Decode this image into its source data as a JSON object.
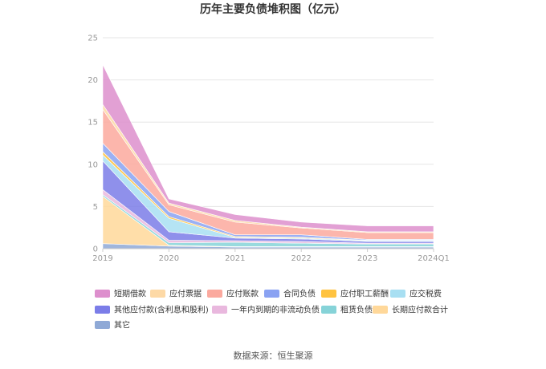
{
  "chart_data": {
    "type": "area",
    "stacked": true,
    "title": "历年主要负债堆积图（亿元）",
    "x": [
      "2019",
      "2020",
      "2021",
      "2022",
      "2023",
      "2024Q1"
    ],
    "ylim": [
      0,
      25
    ],
    "yticks": [
      0,
      5,
      10,
      15,
      20,
      25
    ],
    "grid": true,
    "legend_position": "bottom",
    "series": [
      {
        "name": "其它",
        "color": "#8fa9d6",
        "values": [
          0.6,
          0.3,
          0.2,
          0.2,
          0.2,
          0.2
        ]
      },
      {
        "name": "长期应付款合计",
        "color": "#ffd89a",
        "values": [
          5.6,
          0.1,
          0.05,
          0.05,
          0.05,
          0.05
        ]
      },
      {
        "name": "租赁负债",
        "color": "#86d3d8",
        "values": [
          0.2,
          0.3,
          0.5,
          0.4,
          0.3,
          0.3
        ]
      },
      {
        "name": "一年内到期的非流动负债",
        "color": "#e9b8de",
        "values": [
          0.6,
          0.3,
          0.2,
          0.2,
          0.1,
          0.1
        ]
      },
      {
        "name": "其他应付款(含利息和股利)",
        "color": "#7b7de8",
        "values": [
          3.4,
          1.0,
          0.3,
          0.3,
          0.2,
          0.2
        ]
      },
      {
        "name": "应交税费",
        "color": "#a8dff2",
        "values": [
          0.7,
          1.6,
          0.1,
          0.1,
          0.1,
          0.1
        ]
      },
      {
        "name": "应付职工薪酬",
        "color": "#ffc340",
        "values": [
          0.4,
          0.2,
          0.1,
          0.1,
          0.05,
          0.05
        ]
      },
      {
        "name": "合同负债",
        "color": "#8aa2f2",
        "values": [
          1.0,
          0.6,
          0.2,
          0.3,
          0.1,
          0.1
        ]
      },
      {
        "name": "应付账款",
        "color": "#fba99e",
        "values": [
          4.0,
          0.8,
          1.5,
          0.8,
          0.8,
          0.8
        ]
      },
      {
        "name": "应付票据",
        "color": "#fdd9a6",
        "values": [
          0.6,
          0.2,
          0.2,
          0.1,
          0.1,
          0.1
        ]
      },
      {
        "name": "短期借款",
        "color": "#dd8fcd",
        "values": [
          4.7,
          0.5,
          0.7,
          0.6,
          0.7,
          0.7
        ]
      }
    ],
    "legend_order": [
      "短期借款",
      "应付票据",
      "应付账款",
      "合同负债",
      "应付职工薪酬",
      "应交税费",
      "其他应付款(含利息和股利)",
      "一年内到期的非流动负债",
      "租赁负债",
      "长期应付款合计",
      "其它"
    ]
  },
  "source": "数据来源：恒生聚源"
}
